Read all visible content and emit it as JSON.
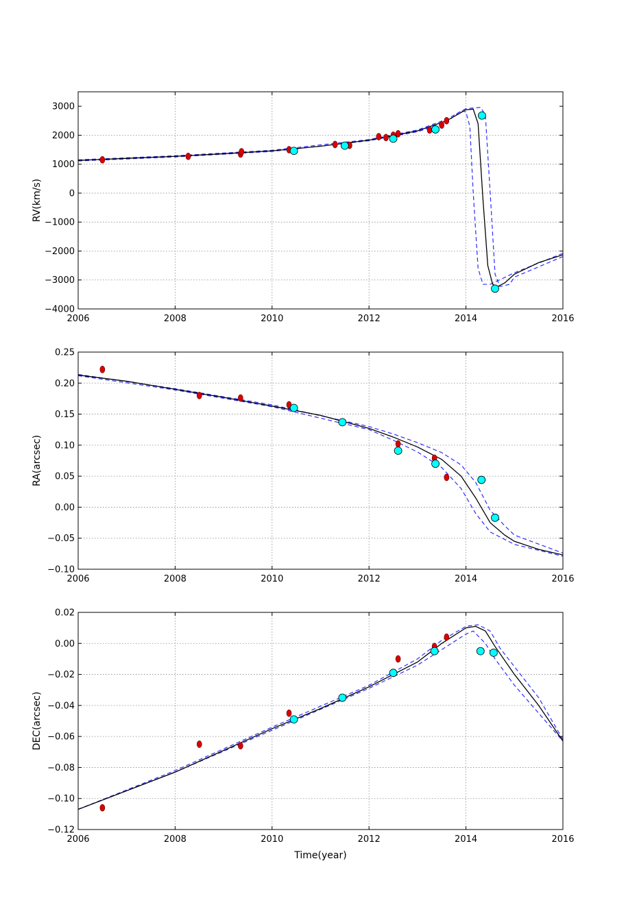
{
  "figure": {
    "xlabel": "Time(year)"
  },
  "colors": {
    "model": "#000000",
    "band": "#2b2bff",
    "red_points": "#dd0000",
    "cyan_points": "#00ffff",
    "grid": "#888888"
  },
  "chart_data": [
    {
      "id": "rv",
      "type": "scatter",
      "ylabel": "RV(km/s)",
      "xlim": [
        2006,
        2016
      ],
      "ylim": [
        -4000,
        3500
      ],
      "xticks": [
        2006,
        2008,
        2010,
        2012,
        2014,
        2016
      ],
      "xtick_labels": [
        "2006",
        "2008",
        "2010",
        "2012",
        "2014",
        "2016"
      ],
      "yticks": [
        -4000,
        -3000,
        -2000,
        -1000,
        0,
        1000,
        2000,
        3000
      ],
      "ytick_labels": [
        "−4000",
        "−3000",
        "−2000",
        "−1000",
        "0",
        "1000",
        "2000",
        "3000"
      ],
      "grid": true,
      "model_line": [
        [
          2006,
          1130
        ],
        [
          2007,
          1200
        ],
        [
          2008,
          1270
        ],
        [
          2009,
          1360
        ],
        [
          2010,
          1460
        ],
        [
          2011,
          1620
        ],
        [
          2012,
          1830
        ],
        [
          2013,
          2150
        ],
        [
          2013.6,
          2500
        ],
        [
          2014.0,
          2880
        ],
        [
          2014.15,
          2900
        ],
        [
          2014.25,
          2400
        ],
        [
          2014.35,
          -200
        ],
        [
          2014.45,
          -2500
        ],
        [
          2014.55,
          -3150
        ],
        [
          2014.65,
          -3230
        ],
        [
          2014.8,
          -3100
        ],
        [
          2015,
          -2800
        ],
        [
          2015.5,
          -2400
        ],
        [
          2016,
          -2130
        ]
      ],
      "band_lower": [
        [
          2006,
          1110
        ],
        [
          2008,
          1250
        ],
        [
          2010,
          1440
        ],
        [
          2012,
          1810
        ],
        [
          2013,
          2120
        ],
        [
          2013.6,
          2450
        ],
        [
          2013.9,
          2850
        ],
        [
          2014.0,
          2800
        ],
        [
          2014.08,
          2300
        ],
        [
          2014.15,
          0
        ],
        [
          2014.25,
          -2600
        ],
        [
          2014.35,
          -3150
        ],
        [
          2014.5,
          -3150
        ],
        [
          2015,
          -2750
        ],
        [
          2016,
          -2080
        ]
      ],
      "band_upper": [
        [
          2006,
          1150
        ],
        [
          2008,
          1290
        ],
        [
          2010,
          1480
        ],
        [
          2012,
          1850
        ],
        [
          2013,
          2180
        ],
        [
          2013.6,
          2550
        ],
        [
          2014.0,
          2920
        ],
        [
          2014.3,
          2960
        ],
        [
          2014.4,
          2700
        ],
        [
          2014.5,
          0
        ],
        [
          2014.6,
          -2800
        ],
        [
          2014.7,
          -3230
        ],
        [
          2014.9,
          -3150
        ],
        [
          2015,
          -2900
        ],
        [
          2016,
          -2190
        ]
      ],
      "red_points": [
        [
          2006.5,
          1150
        ],
        [
          2008.27,
          1270
        ],
        [
          2009.35,
          1350
        ],
        [
          2009.37,
          1430
        ],
        [
          2010.35,
          1500
        ],
        [
          2011.3,
          1680
        ],
        [
          2011.6,
          1650
        ],
        [
          2012.2,
          1950
        ],
        [
          2012.35,
          1920
        ],
        [
          2012.5,
          2000
        ],
        [
          2012.6,
          2050
        ],
        [
          2013.25,
          2180
        ],
        [
          2013.5,
          2350
        ],
        [
          2013.6,
          2500
        ]
      ],
      "cyan_points": [
        [
          2010.45,
          1460
        ],
        [
          2011.5,
          1640
        ],
        [
          2012.5,
          1880
        ],
        [
          2013.37,
          2200
        ],
        [
          2014.33,
          2680
        ],
        [
          2014.6,
          -3300
        ]
      ]
    },
    {
      "id": "ra",
      "type": "scatter",
      "ylabel": "RA(arcsec)",
      "xlim": [
        2006,
        2016
      ],
      "ylim": [
        -0.1,
        0.25
      ],
      "xticks": [
        2006,
        2008,
        2010,
        2012,
        2014,
        2016
      ],
      "xtick_labels": [
        "2006",
        "2008",
        "2010",
        "2012",
        "2014",
        "2016"
      ],
      "yticks": [
        -0.1,
        -0.05,
        0.0,
        0.05,
        0.1,
        0.15,
        0.2,
        0.25
      ],
      "ytick_labels": [
        "−0.10",
        "−0.05",
        "0.00",
        "0.05",
        "0.10",
        "0.15",
        "0.20",
        "0.25"
      ],
      "grid": true,
      "model_line": [
        [
          2006,
          0.213
        ],
        [
          2007,
          0.203
        ],
        [
          2008,
          0.19
        ],
        [
          2009,
          0.177
        ],
        [
          2010,
          0.163
        ],
        [
          2011,
          0.148
        ],
        [
          2012,
          0.127
        ],
        [
          2012.5,
          0.113
        ],
        [
          2013,
          0.097
        ],
        [
          2013.5,
          0.077
        ],
        [
          2013.9,
          0.05
        ],
        [
          2014.2,
          0.015
        ],
        [
          2014.5,
          -0.025
        ],
        [
          2014.8,
          -0.045
        ],
        [
          2015,
          -0.055
        ],
        [
          2015.5,
          -0.068
        ],
        [
          2016,
          -0.077
        ]
      ],
      "band_lower": [
        [
          2006,
          0.212
        ],
        [
          2008,
          0.189
        ],
        [
          2010,
          0.162
        ],
        [
          2012,
          0.125
        ],
        [
          2012.5,
          0.108
        ],
        [
          2013,
          0.089
        ],
        [
          2013.5,
          0.064
        ],
        [
          2013.9,
          0.03
        ],
        [
          2014.2,
          -0.01
        ],
        [
          2014.5,
          -0.04
        ],
        [
          2015,
          -0.06
        ],
        [
          2016,
          -0.079
        ]
      ],
      "band_upper": [
        [
          2006,
          0.214
        ],
        [
          2008,
          0.191
        ],
        [
          2010,
          0.165
        ],
        [
          2012,
          0.13
        ],
        [
          2012.5,
          0.118
        ],
        [
          2013,
          0.104
        ],
        [
          2013.5,
          0.088
        ],
        [
          2013.9,
          0.068
        ],
        [
          2014.2,
          0.04
        ],
        [
          2014.5,
          -0.005
        ],
        [
          2014.8,
          -0.03
        ],
        [
          2015,
          -0.045
        ],
        [
          2016,
          -0.074
        ]
      ],
      "red_points": [
        [
          2006.5,
          0.222
        ],
        [
          2008.5,
          0.18
        ],
        [
          2009.35,
          0.176
        ],
        [
          2010.35,
          0.165
        ],
        [
          2012.6,
          0.102
        ],
        [
          2013.35,
          0.079
        ],
        [
          2013.6,
          0.048
        ]
      ],
      "cyan_points": [
        [
          2010.45,
          0.16
        ],
        [
          2011.45,
          0.137
        ],
        [
          2012.6,
          0.091
        ],
        [
          2013.37,
          0.07
        ],
        [
          2014.32,
          0.044
        ],
        [
          2014.6,
          -0.017
        ]
      ]
    },
    {
      "id": "dec",
      "type": "scatter",
      "ylabel": "DEC(arcsec)",
      "xlabel": "Time(year)",
      "xlim": [
        2006,
        2016
      ],
      "ylim": [
        -0.12,
        0.02
      ],
      "xticks": [
        2006,
        2008,
        2010,
        2012,
        2014,
        2016
      ],
      "xtick_labels": [
        "2006",
        "2008",
        "2010",
        "2012",
        "2014",
        "2016"
      ],
      "yticks": [
        -0.12,
        -0.1,
        -0.08,
        -0.06,
        -0.04,
        -0.02,
        0.0,
        0.02
      ],
      "ytick_labels": [
        "−0.12",
        "−0.10",
        "−0.08",
        "−0.06",
        "−0.04",
        "−0.02",
        "0.00",
        "0.02"
      ],
      "grid": true,
      "model_line": [
        [
          2006,
          -0.107
        ],
        [
          2008,
          -0.083
        ],
        [
          2010,
          -0.055
        ],
        [
          2011,
          -0.042
        ],
        [
          2012,
          -0.028
        ],
        [
          2013,
          -0.012
        ],
        [
          2013.5,
          0.0
        ],
        [
          2014,
          0.01
        ],
        [
          2014.2,
          0.011
        ],
        [
          2014.4,
          0.008
        ],
        [
          2014.6,
          -0.002
        ],
        [
          2015,
          -0.02
        ],
        [
          2015.5,
          -0.04
        ],
        [
          2016,
          -0.063
        ]
      ],
      "band_lower": [
        [
          2006,
          -0.107
        ],
        [
          2008,
          -0.083
        ],
        [
          2010,
          -0.056
        ],
        [
          2012,
          -0.029
        ],
        [
          2013,
          -0.014
        ],
        [
          2013.5,
          -0.004
        ],
        [
          2014,
          0.006
        ],
        [
          2014.15,
          0.008
        ],
        [
          2014.4,
          0.0
        ],
        [
          2014.6,
          -0.01
        ],
        [
          2015,
          -0.027
        ],
        [
          2015.5,
          -0.045
        ],
        [
          2016,
          -0.063
        ]
      ],
      "band_upper": [
        [
          2006,
          -0.107
        ],
        [
          2008,
          -0.082
        ],
        [
          2010,
          -0.054
        ],
        [
          2012,
          -0.027
        ],
        [
          2013,
          -0.01
        ],
        [
          2013.5,
          0.002
        ],
        [
          2014,
          0.011
        ],
        [
          2014.25,
          0.012
        ],
        [
          2014.5,
          0.008
        ],
        [
          2014.7,
          -0.003
        ],
        [
          2015,
          -0.015
        ],
        [
          2015.5,
          -0.035
        ],
        [
          2016,
          -0.062
        ]
      ],
      "red_points": [
        [
          2006.5,
          -0.106
        ],
        [
          2008.5,
          -0.065
        ],
        [
          2009.35,
          -0.066
        ],
        [
          2010.35,
          -0.045
        ],
        [
          2012.6,
          -0.01
        ],
        [
          2013.35,
          -0.002
        ],
        [
          2013.6,
          0.004
        ]
      ],
      "cyan_points": [
        [
          2010.45,
          -0.049
        ],
        [
          2011.45,
          -0.035
        ],
        [
          2012.5,
          -0.019
        ],
        [
          2013.35,
          -0.005
        ],
        [
          2014.3,
          -0.005
        ],
        [
          2014.57,
          -0.006
        ]
      ]
    }
  ]
}
